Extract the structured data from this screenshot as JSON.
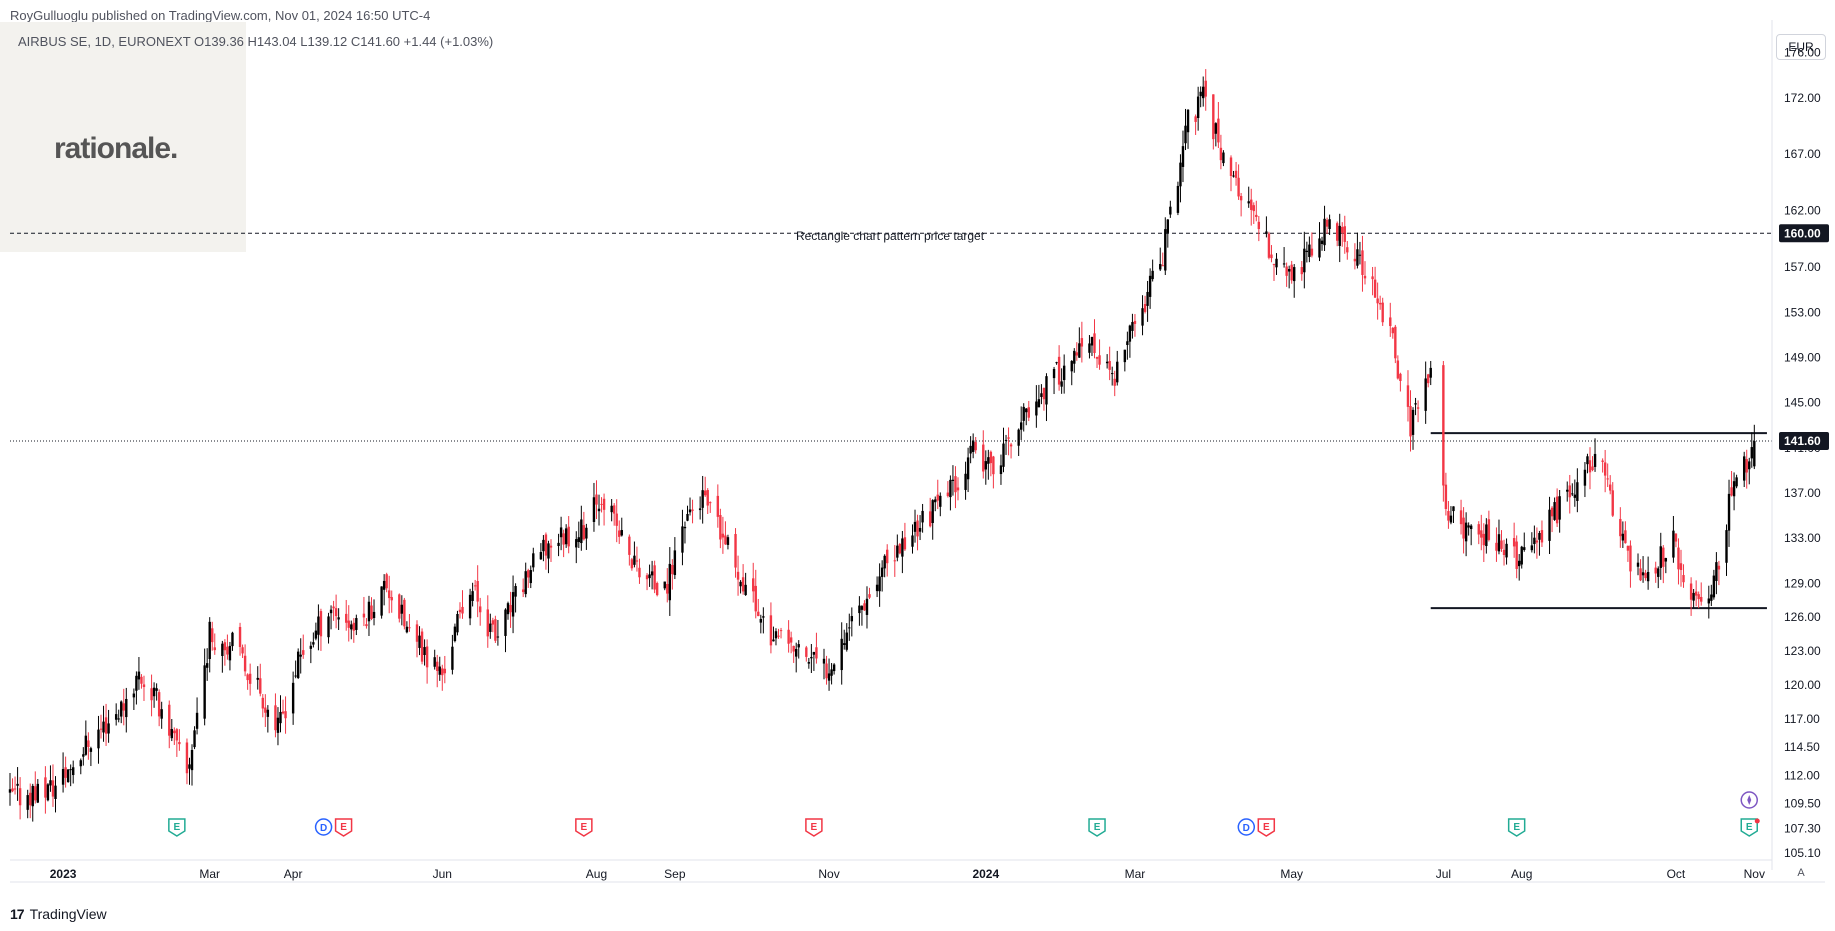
{
  "header": {
    "publisher": "RoyGulluoglu published on TradingView.com, Nov 01, 2024 16:50 UTC-4"
  },
  "symbol": {
    "line": "AIRBUS SE, 1D, EURONEXT  O139.36  H143.04  L139.12  C141.60  +1.44 (+1.03%)"
  },
  "logo": {
    "text": "rationale."
  },
  "currency": "EUR",
  "footer": {
    "brand": "TradingView",
    "mark": "17",
    "auto_label": "A"
  },
  "colors": {
    "up": "#000000",
    "down": "#f23645",
    "grid": "#e0e3eb",
    "badge_bg": "#131722"
  },
  "annotation": {
    "label": "Rectangle chart pattern price target"
  },
  "chart_data": {
    "type": "candlestick",
    "title": "AIRBUS SE, 1D, EURONEXT",
    "ylim": [
      104.5,
      178.0
    ],
    "x_range": [
      "2022-12-12",
      "2024-11-08"
    ],
    "y_ticks": [
      "176.00",
      "172.00",
      "167.00",
      "162.00",
      "157.00",
      "153.00",
      "149.00",
      "145.00",
      "141.00",
      "137.00",
      "133.00",
      "129.00",
      "126.00",
      "123.00",
      "120.00",
      "117.00",
      "114.50",
      "112.00",
      "109.50",
      "107.30",
      "105.10"
    ],
    "x_labels": [
      {
        "label": "2023",
        "date": "2023-01-02",
        "bold": true
      },
      {
        "label": "Mar",
        "date": "2023-03-01"
      },
      {
        "label": "Apr",
        "date": "2023-04-03"
      },
      {
        "label": "Jun",
        "date": "2023-06-01"
      },
      {
        "label": "Aug",
        "date": "2023-08-01"
      },
      {
        "label": "Sep",
        "date": "2023-09-01"
      },
      {
        "label": "Nov",
        "date": "2023-11-01"
      },
      {
        "label": "2024",
        "date": "2024-01-02",
        "bold": true
      },
      {
        "label": "Mar",
        "date": "2024-03-01"
      },
      {
        "label": "May",
        "date": "2024-05-02"
      },
      {
        "label": "Jul",
        "date": "2024-07-01"
      },
      {
        "label": "Aug",
        "date": "2024-08-01"
      },
      {
        "label": "Oct",
        "date": "2024-10-01"
      },
      {
        "label": "Nov",
        "date": "2024-11-01"
      }
    ],
    "price_badges": [
      {
        "value": "160.00",
        "price": 160.0
      },
      {
        "value": "141.60",
        "price": 141.6
      }
    ],
    "horizontal_lines": [
      {
        "name": "price-target",
        "price": 160.0,
        "start": "2022-12-12",
        "end": "2024-11-08",
        "style": "dashed"
      },
      {
        "name": "last-price",
        "price": 141.6,
        "start": "2022-12-12",
        "end": "2024-11-08",
        "style": "dotted"
      },
      {
        "name": "rectangle-top",
        "price": 142.3,
        "start": "2024-06-26",
        "end": "2024-11-06",
        "style": "solid"
      },
      {
        "name": "rectangle-bottom",
        "price": 126.8,
        "start": "2024-06-26",
        "end": "2024-11-06",
        "style": "solid"
      }
    ],
    "price_path": [
      [
        "2022-12-12",
        110.0
      ],
      [
        "2022-12-30",
        111.0
      ],
      [
        "2023-01-12",
        115.0
      ],
      [
        "2023-01-25",
        118.0
      ],
      [
        "2023-02-01",
        121.0
      ],
      [
        "2023-02-10",
        118.0
      ],
      [
        "2023-02-20",
        112.0
      ],
      [
        "2023-03-01",
        124.5
      ],
      [
        "2023-03-10",
        123.5
      ],
      [
        "2023-03-20",
        120.0
      ],
      [
        "2023-03-28",
        116.0
      ],
      [
        "2023-04-05",
        122.0
      ],
      [
        "2023-04-18",
        127.0
      ],
      [
        "2023-04-28",
        125.0
      ],
      [
        "2023-05-10",
        129.0
      ],
      [
        "2023-05-20",
        124.0
      ],
      [
        "2023-06-01",
        121.0
      ],
      [
        "2023-06-12",
        129.0
      ],
      [
        "2023-06-22",
        124.0
      ],
      [
        "2023-07-05",
        130.0
      ],
      [
        "2023-07-15",
        133.0
      ],
      [
        "2023-07-28",
        134.0
      ],
      [
        "2023-08-03",
        137.0
      ],
      [
        "2023-08-15",
        131.0
      ],
      [
        "2023-08-28",
        128.0
      ],
      [
        "2023-09-05",
        135.0
      ],
      [
        "2023-09-12",
        136.5
      ],
      [
        "2023-09-22",
        132.0
      ],
      [
        "2023-10-01",
        128.0
      ],
      [
        "2023-10-10",
        124.0
      ],
      [
        "2023-10-20",
        123.0
      ],
      [
        "2023-10-31",
        121.5
      ],
      [
        "2023-11-10",
        126.0
      ],
      [
        "2023-11-22",
        130.0
      ],
      [
        "2023-12-05",
        134.0
      ],
      [
        "2023-12-15",
        136.0
      ],
      [
        "2023-12-28",
        140.5
      ],
      [
        "2024-01-03",
        139.0
      ],
      [
        "2024-01-12",
        141.5
      ],
      [
        "2024-01-22",
        145.5
      ],
      [
        "2024-02-01",
        148.0
      ],
      [
        "2024-02-12",
        150.0
      ],
      [
        "2024-02-22",
        147.0
      ],
      [
        "2024-03-01",
        152.0
      ],
      [
        "2024-03-12",
        158.0
      ],
      [
        "2024-03-22",
        170.0
      ],
      [
        "2024-03-28",
        172.0
      ],
      [
        "2024-04-05",
        167.0
      ],
      [
        "2024-04-15",
        162.0
      ],
      [
        "2024-04-25",
        158.0
      ],
      [
        "2024-05-03",
        156.0
      ],
      [
        "2024-05-15",
        160.5
      ],
      [
        "2024-05-24",
        159.0
      ],
      [
        "2024-06-03",
        155.0
      ],
      [
        "2024-06-10",
        151.0
      ],
      [
        "2024-06-18",
        143.0
      ],
      [
        "2024-06-26",
        148.0
      ],
      [
        "2024-07-02",
        135.0
      ],
      [
        "2024-07-10",
        134.0
      ],
      [
        "2024-07-22",
        133.0
      ],
      [
        "2024-07-30",
        131.0
      ],
      [
        "2024-08-08",
        133.0
      ],
      [
        "2024-08-20",
        137.0
      ],
      [
        "2024-08-30",
        140.5
      ],
      [
        "2024-09-05",
        137.0
      ],
      [
        "2024-09-12",
        131.0
      ],
      [
        "2024-09-20",
        130.0
      ],
      [
        "2024-09-30",
        132.5
      ],
      [
        "2024-10-07",
        128.0
      ],
      [
        "2024-10-14",
        126.5
      ],
      [
        "2024-10-22",
        136.0
      ],
      [
        "2024-10-29",
        140.0
      ],
      [
        "2024-11-01",
        141.6
      ]
    ],
    "gap": {
      "start": "2024-06-27",
      "end": "2024-06-30"
    },
    "last_candle": {
      "date": "2024-11-01",
      "open": 139.36,
      "high": 143.04,
      "low": 139.12,
      "close": 141.6
    },
    "events": [
      {
        "date": "2023-02-16",
        "types": [
          "E"
        ]
      },
      {
        "date": "2023-04-19",
        "types": [
          "D",
          "E"
        ]
      },
      {
        "date": "2023-07-27",
        "types": [
          "E"
        ]
      },
      {
        "date": "2023-10-26",
        "types": [
          "E"
        ]
      },
      {
        "date": "2024-02-15",
        "types": [
          "E"
        ]
      },
      {
        "date": "2024-04-18",
        "types": [
          "D",
          "E"
        ]
      },
      {
        "date": "2024-07-30",
        "types": [
          "E"
        ]
      },
      {
        "date": "2024-10-30",
        "types": [
          "E"
        ]
      }
    ]
  }
}
